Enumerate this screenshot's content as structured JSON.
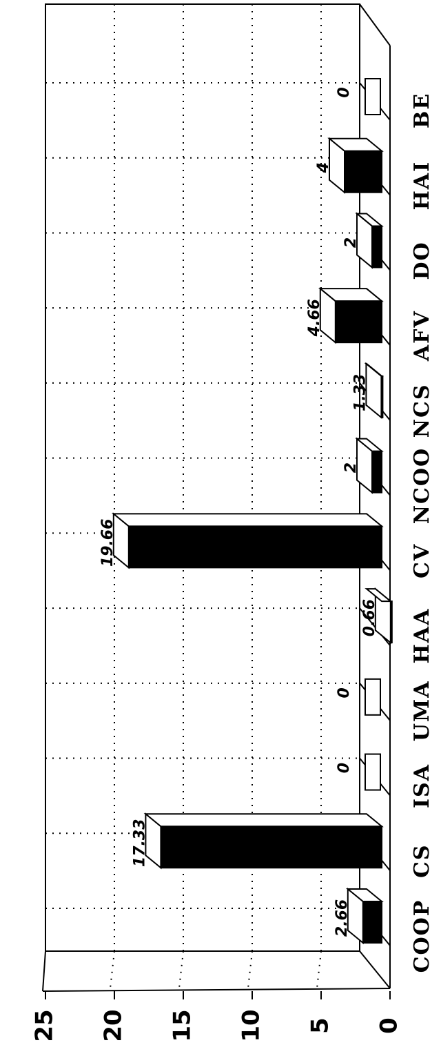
{
  "chart_data": {
    "type": "bar",
    "orientation": "horizontal-3d",
    "categories": [
      "COOP",
      "CS",
      "ISA",
      "UMA",
      "HAA",
      "CV",
      "NCOO",
      "NCS",
      "AFV",
      "DO",
      "HAI",
      "BE"
    ],
    "values": [
      2.66,
      17.33,
      0,
      0,
      0.66,
      19.66,
      2,
      1.33,
      4.66,
      2,
      4,
      0
    ],
    "value_labels": [
      "2.66",
      "17.33",
      "0",
      "0",
      "0.66",
      "19.66",
      "2",
      "1.33",
      "4.66",
      "2",
      "4",
      "0"
    ],
    "xlim": [
      0,
      25
    ],
    "ticks": [
      "0",
      "5",
      "10",
      "15",
      "20",
      "25"
    ],
    "grid": true,
    "title": "",
    "xlabel": "",
    "ylabel": "",
    "colors": {
      "bar_front": "#000000",
      "bar_top": "#ffffff",
      "line": "#000000",
      "background": "#ffffff"
    }
  }
}
